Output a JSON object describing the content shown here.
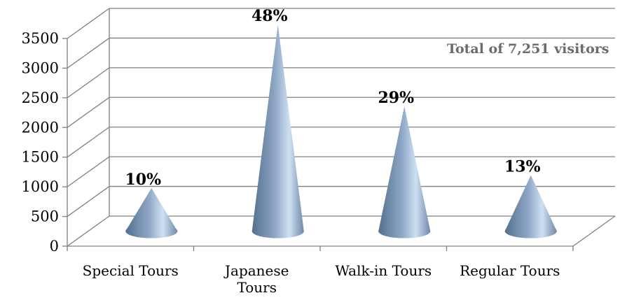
{
  "chart_data": {
    "type": "bar",
    "shape": "cone",
    "categories": [
      "Special Tours",
      "Japanese Tours",
      "Walk-in Tours",
      "Regular Tours"
    ],
    "category_label_lines": [
      [
        "Special Tours"
      ],
      [
        "Japanese",
        "Tours"
      ],
      [
        "Walk-in Tours"
      ],
      [
        "Regular Tours"
      ]
    ],
    "values": [
      725,
      3480,
      2103,
      943
    ],
    "data_labels": [
      "10%",
      "48%",
      "29%",
      "13%"
    ],
    "title": "",
    "xlabel": "",
    "ylabel": "",
    "ylim": [
      0,
      3500
    ],
    "yticks": [
      0,
      500,
      1000,
      1500,
      2000,
      2500,
      3000,
      3500
    ],
    "grid": true,
    "legend": "none",
    "annotation": "Total of 7,251 visitors",
    "colors": {
      "cone_dark": "#55708f",
      "cone_mid": "#8ea7c6",
      "cone_light": "#cfe0f3",
      "grid": "#808080",
      "annotation": "#6b6b6b"
    }
  }
}
